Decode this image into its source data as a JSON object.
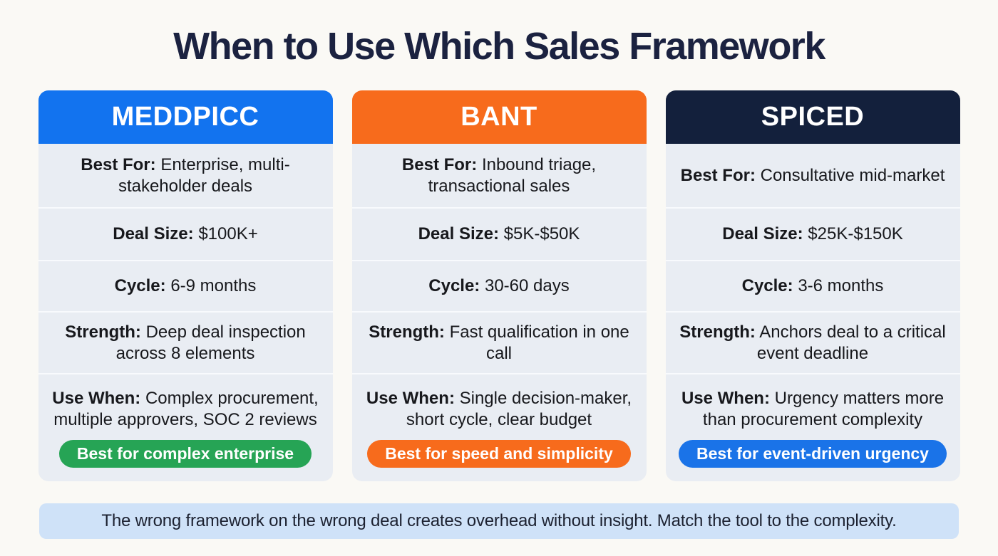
{
  "title": "When to Use Which Sales Framework",
  "colors": {
    "page_background": "#faf9f5",
    "title_color": "#1b2240",
    "card_body_background": "#e9edf3",
    "row_separator": "#f8fafd",
    "footer_background": "#cfe2f8"
  },
  "columns": [
    {
      "name": "MEDDPICC",
      "header_color": "#1273ef",
      "badge_color": "#26a455",
      "rows": [
        {
          "label": "Best For:",
          "value": "Enterprise, multi-stakeholder deals"
        },
        {
          "label": "Deal Size:",
          "value": "$100K+"
        },
        {
          "label": "Cycle:",
          "value": "6-9 months"
        },
        {
          "label": "Strength:",
          "value": "Deep deal inspection across 8 elements"
        },
        {
          "label": "Use When:",
          "value": "Complex procurement, multiple approvers, SOC 2 reviews"
        }
      ],
      "badge": "Best for complex enterprise"
    },
    {
      "name": "BANT",
      "header_color": "#f76b1c",
      "badge_color": "#f76b1c",
      "rows": [
        {
          "label": "Best For:",
          "value": "Inbound triage, transactional sales"
        },
        {
          "label": "Deal Size:",
          "value": "$5K-$50K"
        },
        {
          "label": "Cycle:",
          "value": "30-60 days"
        },
        {
          "label": "Strength:",
          "value": "Fast qualification in one call"
        },
        {
          "label": "Use When:",
          "value": "Single decision-maker, short cycle, clear budget"
        }
      ],
      "badge": "Best for speed and simplicity"
    },
    {
      "name": "SPICED",
      "header_color": "#13203c",
      "badge_color": "#1a73e8",
      "rows": [
        {
          "label": "Best For:",
          "value": "Consultative mid-market"
        },
        {
          "label": "Deal Size:",
          "value": "$25K-$150K"
        },
        {
          "label": "Cycle:",
          "value": "3-6 months"
        },
        {
          "label": "Strength:",
          "value": "Anchors deal to a critical event deadline"
        },
        {
          "label": "Use When:",
          "value": "Urgency matters more than procurement complexity"
        }
      ],
      "badge": "Best for event-driven urgency"
    }
  ],
  "footer": "The wrong framework on the wrong deal creates overhead without insight. Match the tool to the complexity."
}
